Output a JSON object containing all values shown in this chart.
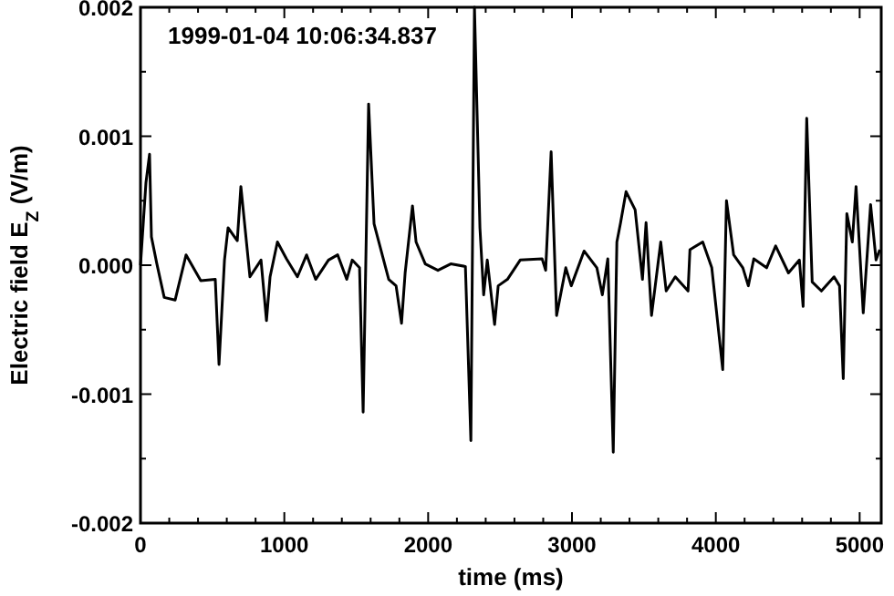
{
  "chart_data": {
    "type": "line",
    "xlabel": "time (ms)",
    "ylabel": "Electric field E$_{Z}$ (V/m)",
    "annotations": [
      "1999-01-04 10:06:34.837"
    ],
    "xlim": [
      0,
      5150
    ],
    "ylim": [
      -0.002,
      0.002
    ],
    "xticks": [
      0,
      {
        "value": 200,
        "label": null
      },
      {
        "value": 400,
        "label": null
      },
      {
        "value": 600,
        "label": null
      },
      {
        "value": 800,
        "label": null
      },
      1000,
      {
        "value": 1200,
        "label": null
      },
      {
        "value": 1400,
        "label": null
      },
      {
        "value": 1600,
        "label": null
      },
      {
        "value": 1800,
        "label": null
      },
      2000,
      {
        "value": 2200,
        "label": null
      },
      {
        "value": 2400,
        "label": null
      },
      {
        "value": 2600,
        "label": null
      },
      {
        "value": 2800,
        "label": null
      },
      3000,
      {
        "value": 3200,
        "label": null
      },
      {
        "value": 3400,
        "label": null
      },
      {
        "value": 3600,
        "label": null
      },
      {
        "value": 3800,
        "label": null
      },
      4000,
      {
        "value": 4200,
        "label": null
      },
      {
        "value": 4400,
        "label": null
      },
      {
        "value": 4600,
        "label": null
      },
      {
        "value": 4800,
        "label": null
      },
      5000
    ],
    "yticks": [
      {
        "value": -0.002,
        "label": "-0.002"
      },
      {
        "value": -0.0015,
        "label": null
      },
      {
        "value": -0.001,
        "label": "-0.001"
      },
      {
        "value": -0.0005,
        "label": null
      },
      {
        "value": 0,
        "label": "0.000"
      },
      {
        "value": 0.0005,
        "label": null
      },
      {
        "value": 0.001,
        "label": "0.001"
      },
      {
        "value": 0.0015,
        "label": null
      },
      {
        "value": 0.002,
        "label": "0.002"
      }
    ],
    "grid": false,
    "marker": "none",
    "line_style": "solid",
    "series": [
      {
        "color": "#000000",
        "x": [
          0,
          38,
          63,
          76,
          114,
          165,
          241,
          317,
          419,
          520,
          546,
          584,
          609,
          673,
          698,
          761,
          838,
          876,
          901,
          952,
          1015,
          1091,
          1155,
          1218,
          1307,
          1371,
          1434,
          1472,
          1523,
          1548,
          1586,
          1624,
          1726,
          1777,
          1815,
          1840,
          1891,
          1916,
          1980,
          2068,
          2157,
          2259,
          2297,
          2322,
          2360,
          2386,
          2411,
          2462,
          2487,
          2551,
          2640,
          2792,
          2817,
          2855,
          2893,
          2957,
          2995,
          3084,
          3173,
          3211,
          3249,
          3287,
          3312,
          3338,
          3376,
          3439,
          3490,
          3515,
          3553,
          3617,
          3655,
          3718,
          3807,
          3820,
          3909,
          3972,
          4048,
          4074,
          4124,
          4188,
          4226,
          4264,
          4353,
          4416,
          4505,
          4581,
          4607,
          4632,
          4670,
          4734,
          4822,
          4860,
          4886,
          4911,
          4949,
          4975,
          5025,
          5076,
          5114,
          5140
        ],
        "values": [
          0.0,
          0.00064,
          0.00086,
          0.00022,
          1e-05,
          -0.00025,
          -0.00027,
          8e-05,
          -0.00012,
          -0.00011,
          -0.00077,
          4e-05,
          0.00029,
          0.00019,
          0.00061,
          -9e-05,
          4e-05,
          -0.00043,
          -9e-05,
          0.00018,
          5e-05,
          -9e-05,
          8e-05,
          -0.00011,
          4e-05,
          8e-05,
          -0.00011,
          4e-05,
          -2e-05,
          -0.00114,
          0.00125,
          0.00032,
          -0.00011,
          -0.00016,
          -0.00045,
          -6e-05,
          0.00046,
          0.00018,
          1e-05,
          -4e-05,
          1e-05,
          -1e-05,
          -0.00136,
          0.002,
          0.00029,
          -0.00023,
          4e-05,
          -0.00046,
          -0.00016,
          -0.00011,
          4e-05,
          5e-05,
          -4e-05,
          0.00088,
          -0.00039,
          -2e-05,
          -0.00016,
          0.00011,
          -2e-05,
          -0.00023,
          5e-05,
          -0.00145,
          0.00018,
          0.00033,
          0.00057,
          0.00043,
          -0.00011,
          0.00033,
          -0.00039,
          0.00018,
          -0.0002,
          -9e-05,
          -0.0002,
          0.00012,
          0.00018,
          -2e-05,
          -0.00081,
          0.0005,
          8e-05,
          -2e-05,
          -0.00016,
          5e-05,
          -2e-05,
          0.00015,
          -6e-05,
          4e-05,
          -0.00032,
          0.00114,
          -0.00013,
          -0.0002,
          -9e-05,
          -0.00016,
          -0.00088,
          0.0004,
          0.00018,
          0.00061,
          -0.00037,
          0.00047,
          4e-05,
          0.00012
        ]
      }
    ]
  }
}
